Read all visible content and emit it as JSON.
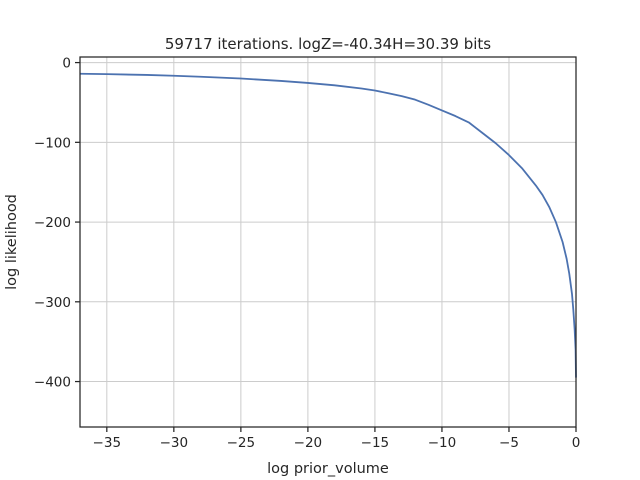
{
  "chart_data": {
    "type": "line",
    "title": "59717 iterations. logZ=-40.34H=30.39 bits",
    "xlabel": "log prior_volume",
    "ylabel": "log likelihood",
    "xlim": [
      -37,
      0
    ],
    "ylim": [
      -457,
      7
    ],
    "xticks": [
      -35,
      -30,
      -25,
      -20,
      -15,
      -10,
      -5,
      0
    ],
    "yticks": [
      0,
      -100,
      -200,
      -300,
      -400
    ],
    "xtick_labels": [
      "−35",
      "−30",
      "−25",
      "−20",
      "−15",
      "−10",
      "−5",
      "0"
    ],
    "ytick_labels": [
      "0",
      "−100",
      "−200",
      "−300",
      "−400"
    ],
    "grid": true,
    "series": [
      {
        "color": "#4c72b0",
        "x": [
          -37,
          -35,
          -32,
          -30,
          -28,
          -25,
          -22,
          -20,
          -18,
          -16,
          -15,
          -14,
          -13,
          -12,
          -11,
          -10,
          -9,
          -8,
          -7,
          -6,
          -5,
          -4,
          -3,
          -2.5,
          -2,
          -1.5,
          -1,
          -0.7,
          -0.5,
          -0.3,
          -0.2,
          -0.1,
          -0.03,
          0
        ],
        "y": [
          -14,
          -14.5,
          -15.5,
          -16.5,
          -17.8,
          -20,
          -23,
          -25.5,
          -28.5,
          -32.5,
          -35,
          -38.5,
          -42,
          -46.5,
          -53,
          -60,
          -67,
          -75,
          -88,
          -101,
          -116,
          -133,
          -154,
          -166,
          -181,
          -200,
          -225,
          -246,
          -265,
          -290,
          -310,
          -335,
          -360,
          -395
        ]
      }
    ]
  }
}
